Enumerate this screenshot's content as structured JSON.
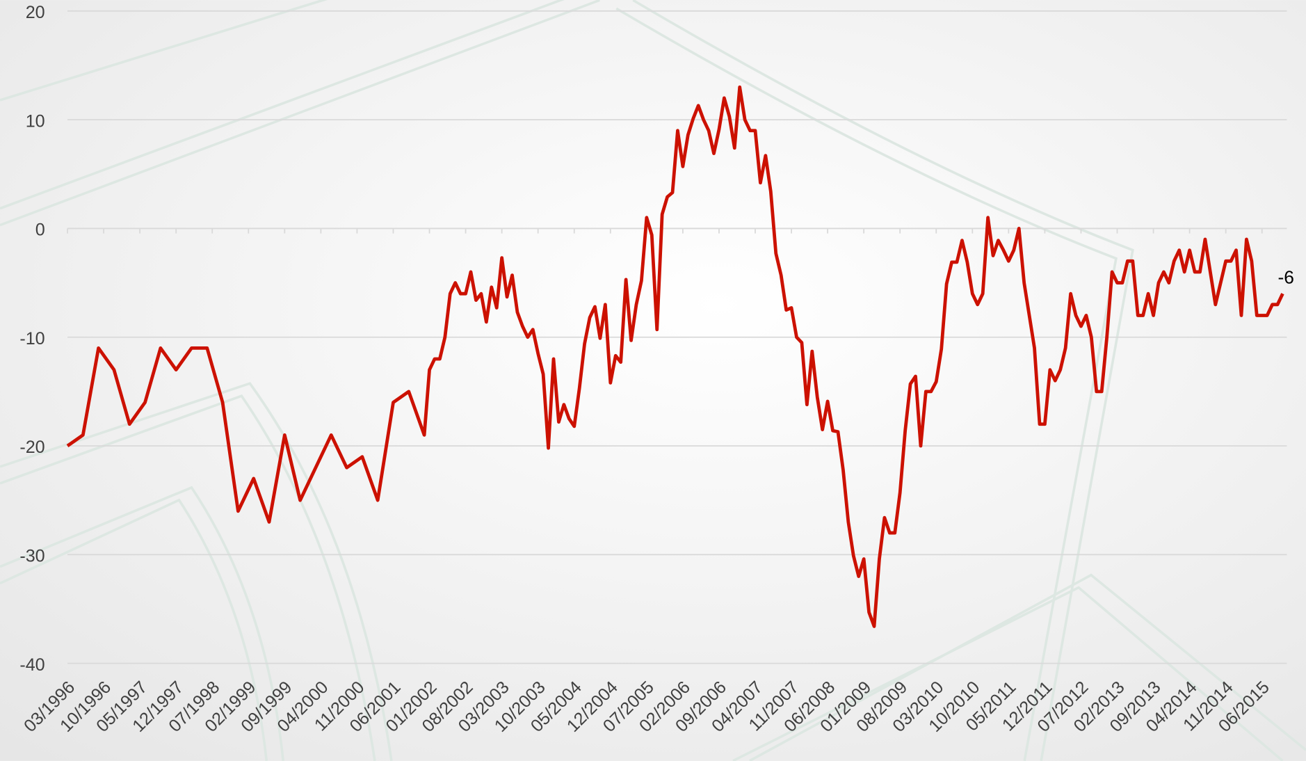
{
  "chart_data": {
    "type": "line",
    "x": [
      "03/1996",
      "06/1996",
      "09/1996",
      "12/1996",
      "03/1997",
      "06/1997",
      "09/1997",
      "12/1997",
      "03/1998",
      "06/1998",
      "09/1998",
      "12/1998",
      "03/1999",
      "06/1999",
      "09/1999",
      "12/1999",
      "03/2000",
      "06/2000",
      "09/2000",
      "12/2000",
      "03/2001",
      "06/2001",
      "09/2001",
      "12/2001",
      "01/2002",
      "02/2002",
      "03/2002",
      "04/2002",
      "05/2002",
      "06/2002",
      "07/2002",
      "08/2002",
      "09/2002",
      "10/2002",
      "11/2002",
      "12/2002",
      "01/2003",
      "02/2003",
      "03/2003",
      "04/2003",
      "05/2003",
      "06/2003",
      "07/2003",
      "08/2003",
      "09/2003",
      "10/2003",
      "11/2003",
      "12/2003",
      "01/2004",
      "02/2004",
      "03/2004",
      "04/2004",
      "05/2004",
      "06/2004",
      "07/2004",
      "08/2004",
      "09/2004",
      "10/2004",
      "11/2004",
      "12/2004",
      "01/2005",
      "02/2005",
      "03/2005",
      "04/2005",
      "05/2005",
      "06/2005",
      "07/2005",
      "08/2005",
      "09/2005",
      "10/2005",
      "11/2005",
      "12/2005",
      "01/2006",
      "02/2006",
      "03/2006",
      "04/2006",
      "05/2006",
      "06/2006",
      "07/2006",
      "08/2006",
      "09/2006",
      "10/2006",
      "11/2006",
      "12/2006",
      "01/2007",
      "02/2007",
      "03/2007",
      "04/2007",
      "05/2007",
      "06/2007",
      "07/2007",
      "08/2007",
      "09/2007",
      "10/2007",
      "11/2007",
      "12/2007",
      "01/2008",
      "02/2008",
      "03/2008",
      "04/2008",
      "05/2008",
      "06/2008",
      "07/2008",
      "08/2008",
      "09/2008",
      "10/2008",
      "11/2008",
      "12/2008",
      "01/2009",
      "02/2009",
      "03/2009",
      "04/2009",
      "05/2009",
      "06/2009",
      "07/2009",
      "08/2009",
      "09/2009",
      "10/2009",
      "11/2009",
      "12/2009",
      "01/2010",
      "02/2010",
      "03/2010",
      "04/2010",
      "05/2010",
      "06/2010",
      "07/2010",
      "08/2010",
      "09/2010",
      "10/2010",
      "11/2010",
      "12/2010",
      "01/2011",
      "02/2011",
      "03/2011",
      "04/2011",
      "05/2011",
      "06/2011",
      "07/2011",
      "08/2011",
      "09/2011",
      "10/2011",
      "11/2011",
      "12/2011",
      "01/2012",
      "02/2012",
      "03/2012",
      "04/2012",
      "05/2012",
      "06/2012",
      "07/2012",
      "08/2012",
      "09/2012",
      "10/2012",
      "11/2012",
      "12/2012",
      "01/2013",
      "02/2013",
      "03/2013",
      "04/2013",
      "05/2013",
      "06/2013",
      "07/2013",
      "08/2013",
      "09/2013",
      "10/2013",
      "11/2013",
      "12/2013",
      "01/2014",
      "02/2014",
      "03/2014",
      "04/2014",
      "05/2014",
      "06/2014",
      "07/2014",
      "08/2014",
      "09/2014",
      "10/2014",
      "11/2014",
      "12/2014",
      "01/2015",
      "02/2015",
      "03/2015",
      "04/2015",
      "05/2015",
      "06/2015",
      "07/2015",
      "08/2015",
      "09/2015",
      "10/2015"
    ],
    "series": [
      {
        "color": "#cc1100",
        "values": [
          -20,
          -19,
          -11,
          -13,
          -18,
          -16,
          -11,
          -13,
          -11,
          -11,
          -16,
          -26,
          -23,
          -27,
          -19,
          -25,
          -22,
          -19,
          -22,
          -21,
          -25,
          -16,
          -15,
          -19,
          -13,
          -12,
          -12,
          -10,
          -6,
          -5,
          -6,
          -6,
          -4,
          -6.6,
          -6,
          -8.6,
          -5.4,
          -7.3,
          -2.7,
          -6.3,
          -4.3,
          -7.7,
          -9,
          -10,
          -9.3,
          -11.5,
          -13.4,
          -20.2,
          -12,
          -17.8,
          -16.2,
          -17.5,
          -18.2,
          -14.7,
          -10.6,
          -8.2,
          -7.2,
          -10.1,
          -7,
          -14.2,
          -11.7,
          -12.3,
          -4.7,
          -10.3,
          -7,
          -4.8,
          1,
          -0.6,
          -9.3,
          1.3,
          2.9,
          3.3,
          9,
          5.7,
          8.6,
          10.1,
          11.3,
          10,
          9,
          6.9,
          9.1,
          12,
          10.3,
          7.4,
          13,
          10,
          9,
          9,
          4.2,
          6.7,
          3.4,
          -2.3,
          -4.3,
          -7.5,
          -7.3,
          -10,
          -10.5,
          -16.2,
          -11.3,
          -15.5,
          -18.5,
          -15.9,
          -18.6,
          -18.7,
          -22.2,
          -27,
          -30.1,
          -32,
          -30.4,
          -35.3,
          -36.6,
          -30.4,
          -26.6,
          -28,
          -28,
          -24.3,
          -18.6,
          -14.3,
          -13.6,
          -20,
          -15,
          -15,
          -14.1,
          -11.1,
          -5.1,
          -3.1,
          -3.1,
          -1.1,
          -3.1,
          -6,
          -7,
          -6,
          1,
          -2.5,
          -1.1,
          -2,
          -3,
          -2,
          0,
          -5,
          -8,
          -11,
          -18,
          -18,
          -13,
          -14,
          -13,
          -11,
          -6,
          -8,
          -9,
          -8,
          -10,
          -15,
          -15,
          -10,
          -4,
          -5,
          -5,
          -3,
          -3,
          -8,
          -8,
          -6,
          -8,
          -5,
          -4,
          -5,
          -3,
          -2,
          -4,
          -2,
          -4,
          -4,
          -1,
          -4,
          -7,
          -5,
          -3,
          -3,
          -2,
          -8,
          -1,
          -3,
          -8,
          -8,
          -8,
          -7,
          -7,
          -6
        ]
      }
    ],
    "xlim": [
      "03/1996",
      "10/2015"
    ],
    "xticks": [
      "03/1996",
      "10/1996",
      "05/1997",
      "12/1997",
      "07/1998",
      "02/1999",
      "09/1999",
      "04/2000",
      "11/2000",
      "06/2001",
      "01/2002",
      "08/2002",
      "03/2003",
      "10/2003",
      "05/2004",
      "12/2004",
      "07/2005",
      "02/2006",
      "09/2006",
      "04/2007",
      "11/2007",
      "06/2008",
      "01/2009",
      "08/2009",
      "03/2010",
      "10/2010",
      "05/2011",
      "12/2011",
      "07/2012",
      "02/2013",
      "09/2013",
      "04/2014",
      "11/2014",
      "06/2015"
    ],
    "ylim": [
      -40,
      20
    ],
    "yticks": [
      20,
      10,
      0,
      -10,
      -20,
      -30,
      -40
    ],
    "grid": true,
    "label_last_point": true
  }
}
